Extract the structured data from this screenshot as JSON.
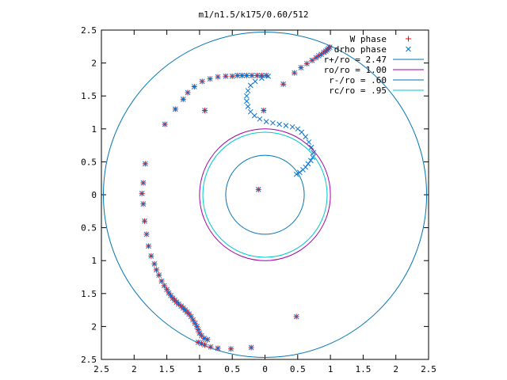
{
  "chart_data": {
    "type": "scatter",
    "title": "m1/n1.5/k175/0.60/512",
    "xlim": [
      -2.5,
      2.5
    ],
    "ylim": [
      -2.5,
      2.5
    ],
    "x_ticks": [
      -2.5,
      -2,
      -1.5,
      -1,
      -0.5,
      0,
      0.5,
      1,
      1.5,
      2,
      2.5
    ],
    "y_ticks": [
      2.5,
      2,
      1.5,
      1,
      0.5,
      0,
      -0.5,
      -1,
      -1.5,
      -2,
      -2.5
    ],
    "x_tick_labels": [
      "2.5",
      "2",
      "1.5",
      "1",
      "0.5",
      "0",
      "0.5",
      "1",
      "1.5",
      "2",
      "2.5"
    ],
    "y_tick_labels": [
      "2.5",
      "2",
      "1.5",
      "1",
      "0.5",
      "0",
      "0.5",
      "1",
      "1.5",
      "2",
      "2.5"
    ],
    "grid": false,
    "legend_position": "top-right",
    "series": [
      {
        "name": "W phase",
        "marker": "plus",
        "color": "#ff0000",
        "points": [
          [
            0.99,
            2.24
          ],
          [
            0.97,
            2.22
          ],
          [
            0.95,
            2.2
          ],
          [
            0.93,
            2.18
          ],
          [
            0.9,
            2.16
          ],
          [
            0.86,
            2.13
          ],
          [
            0.82,
            2.11
          ],
          [
            0.78,
            2.08
          ],
          [
            0.72,
            2.04
          ],
          [
            0.64,
            1.99
          ],
          [
            0.55,
            1.93
          ],
          [
            0.45,
            1.85
          ],
          [
            0.28,
            1.68
          ],
          [
            -0.02,
            1.28
          ],
          [
            -0.1,
            0.08
          ],
          [
            -0.92,
            1.28
          ],
          [
            0.48,
            -1.85
          ],
          [
            -0.21,
            -2.32
          ],
          [
            -0.52,
            -2.34
          ],
          [
            -0.72,
            -2.33
          ],
          [
            -0.83,
            -2.31
          ],
          [
            -0.92,
            -2.28
          ],
          [
            -0.97,
            -2.26
          ],
          [
            -1.02,
            -2.24
          ],
          [
            -1.83,
            0.47
          ],
          [
            -1.86,
            0.18
          ],
          [
            -1.88,
            0.02
          ],
          [
            -1.86,
            -0.14
          ],
          [
            -1.84,
            -0.4
          ],
          [
            -1.81,
            -0.6
          ],
          [
            -1.78,
            -0.78
          ],
          [
            -1.74,
            -0.93
          ],
          [
            -1.69,
            -1.05
          ],
          [
            -1.66,
            -1.14
          ],
          [
            -1.62,
            -1.22
          ],
          [
            -1.58,
            -1.31
          ],
          [
            -1.54,
            -1.38
          ],
          [
            -1.5,
            -1.44
          ],
          [
            -1.47,
            -1.49
          ],
          [
            -1.44,
            -1.53
          ],
          [
            -1.41,
            -1.57
          ],
          [
            -1.38,
            -1.6
          ],
          [
            -1.35,
            -1.63
          ],
          [
            -1.32,
            -1.66
          ],
          [
            -1.28,
            -1.69
          ],
          [
            -1.25,
            -1.72
          ],
          [
            -1.22,
            -1.75
          ],
          [
            -1.19,
            -1.78
          ],
          [
            -1.16,
            -1.81
          ],
          [
            -1.13,
            -1.85
          ],
          [
            -1.1,
            -1.9
          ],
          [
            -1.07,
            -1.95
          ],
          [
            -1.04,
            -2.0
          ],
          [
            -1.02,
            -2.05
          ],
          [
            -1.0,
            -2.1
          ],
          [
            -0.97,
            -2.14
          ],
          [
            -0.93,
            -2.18
          ],
          [
            -0.88,
            -2.2
          ],
          [
            -1.53,
            1.07
          ],
          [
            -1.37,
            1.3
          ],
          [
            -1.25,
            1.45
          ],
          [
            -1.18,
            1.55
          ],
          [
            -1.08,
            1.64
          ],
          [
            -0.96,
            1.72
          ],
          [
            -0.84,
            1.76
          ],
          [
            -0.72,
            1.79
          ],
          [
            -0.6,
            1.8
          ],
          [
            -0.5,
            1.8
          ],
          [
            -0.42,
            1.81
          ],
          [
            -0.35,
            1.81
          ],
          [
            -0.28,
            1.81
          ],
          [
            -0.2,
            1.81
          ],
          [
            -0.12,
            1.81
          ],
          [
            -0.05,
            1.81
          ],
          [
            0.02,
            1.81
          ]
        ]
      },
      {
        "name": "drho phase",
        "marker": "cross",
        "color": "#0072d4",
        "points": [
          [
            0.99,
            2.24
          ],
          [
            0.97,
            2.22
          ],
          [
            0.95,
            2.2
          ],
          [
            0.93,
            2.18
          ],
          [
            0.9,
            2.16
          ],
          [
            0.86,
            2.13
          ],
          [
            0.82,
            2.11
          ],
          [
            0.78,
            2.08
          ],
          [
            0.72,
            2.04
          ],
          [
            0.64,
            1.99
          ],
          [
            0.55,
            1.93
          ],
          [
            0.45,
            1.85
          ],
          [
            0.28,
            1.68
          ],
          [
            -0.02,
            1.28
          ],
          [
            -0.1,
            0.08
          ],
          [
            -0.92,
            1.28
          ],
          [
            0.48,
            -1.85
          ],
          [
            -0.21,
            -2.32
          ],
          [
            -0.52,
            -2.34
          ],
          [
            -0.72,
            -2.33
          ],
          [
            -0.83,
            -2.31
          ],
          [
            -0.92,
            -2.28
          ],
          [
            -0.97,
            -2.26
          ],
          [
            -1.02,
            -2.24
          ],
          [
            -1.83,
            0.47
          ],
          [
            -1.86,
            0.18
          ],
          [
            -1.88,
            0.02
          ],
          [
            -1.86,
            -0.14
          ],
          [
            -1.84,
            -0.4
          ],
          [
            -1.81,
            -0.6
          ],
          [
            -1.78,
            -0.78
          ],
          [
            -1.74,
            -0.93
          ],
          [
            -1.69,
            -1.05
          ],
          [
            -1.66,
            -1.14
          ],
          [
            -1.62,
            -1.22
          ],
          [
            -1.58,
            -1.31
          ],
          [
            -1.54,
            -1.38
          ],
          [
            -1.5,
            -1.44
          ],
          [
            -1.47,
            -1.49
          ],
          [
            -1.44,
            -1.53
          ],
          [
            -1.41,
            -1.57
          ],
          [
            -1.38,
            -1.6
          ],
          [
            -1.35,
            -1.63
          ],
          [
            -1.32,
            -1.66
          ],
          [
            -1.28,
            -1.69
          ],
          [
            -1.25,
            -1.72
          ],
          [
            -1.22,
            -1.75
          ],
          [
            -1.19,
            -1.78
          ],
          [
            -1.16,
            -1.81
          ],
          [
            -1.13,
            -1.85
          ],
          [
            -1.1,
            -1.9
          ],
          [
            -1.07,
            -1.95
          ],
          [
            -1.04,
            -2.0
          ],
          [
            -1.02,
            -2.05
          ],
          [
            -1.0,
            -2.1
          ],
          [
            -0.97,
            -2.14
          ],
          [
            -0.93,
            -2.18
          ],
          [
            -0.88,
            -2.2
          ],
          [
            -1.53,
            1.07
          ],
          [
            -1.37,
            1.3
          ],
          [
            -1.25,
            1.45
          ],
          [
            -1.18,
            1.55
          ],
          [
            -1.08,
            1.64
          ],
          [
            -0.96,
            1.72
          ],
          [
            -0.84,
            1.76
          ],
          [
            -0.72,
            1.79
          ],
          [
            -0.6,
            1.8
          ],
          [
            -0.5,
            1.8
          ],
          [
            -0.42,
            1.81
          ],
          [
            -0.35,
            1.81
          ],
          [
            -0.28,
            1.81
          ],
          [
            -0.2,
            1.81
          ],
          [
            -0.12,
            1.81
          ],
          [
            -0.05,
            1.81
          ],
          [
            0.02,
            1.81
          ],
          [
            0.05,
            1.8
          ],
          [
            -0.05,
            1.77
          ],
          [
            -0.15,
            1.72
          ],
          [
            -0.22,
            1.66
          ],
          [
            -0.26,
            1.58
          ],
          [
            -0.28,
            1.5
          ],
          [
            -0.28,
            1.42
          ],
          [
            -0.26,
            1.34
          ],
          [
            -0.22,
            1.26
          ],
          [
            -0.16,
            1.2
          ],
          [
            -0.08,
            1.15
          ],
          [
            0.02,
            1.11
          ],
          [
            0.12,
            1.09
          ],
          [
            0.22,
            1.07
          ],
          [
            0.32,
            1.05
          ],
          [
            0.42,
            1.03
          ],
          [
            0.5,
            1.0
          ],
          [
            0.56,
            0.95
          ],
          [
            0.62,
            0.88
          ],
          [
            0.67,
            0.8
          ],
          [
            0.71,
            0.72
          ],
          [
            0.74,
            0.64
          ],
          [
            0.73,
            0.57
          ],
          [
            0.7,
            0.52
          ],
          [
            0.66,
            0.47
          ],
          [
            0.62,
            0.42
          ],
          [
            0.58,
            0.38
          ],
          [
            0.53,
            0.34
          ],
          [
            0.48,
            0.31
          ]
        ]
      },
      {
        "name": "r+/ro = 2.47",
        "type": "circle",
        "radius": 2.47,
        "color": "#0072b2"
      },
      {
        "name": "ro/ro = 1.00",
        "type": "circle",
        "radius": 1.0,
        "color": "#a000a0"
      },
      {
        "name": "r-/ro = .60",
        "type": "circle",
        "radius": 0.6,
        "color": "#0072b2"
      },
      {
        "name": "rc/ro = .95",
        "type": "circle",
        "radius": 0.95,
        "color": "#00c8c8"
      }
    ]
  }
}
